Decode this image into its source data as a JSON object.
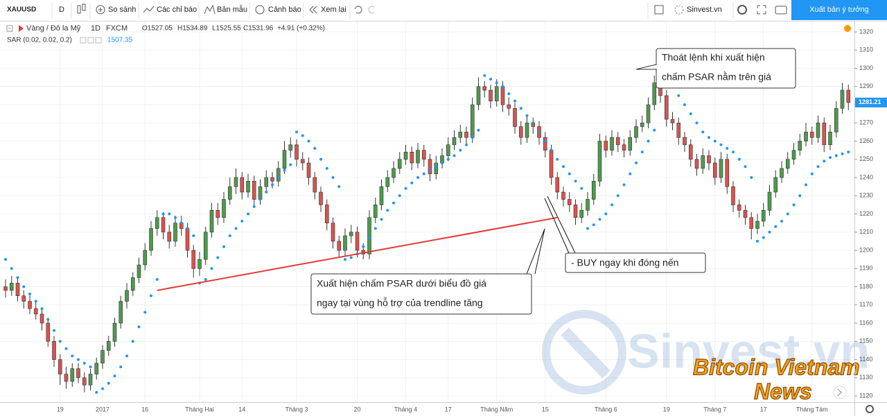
{
  "toolbar": {
    "symbol": "XAUUSD",
    "interval": "D",
    "items": [
      "So sánh",
      "Các chỉ báo",
      "Bản mẫu",
      "Cảnh báo",
      "Xem lại"
    ],
    "layout_name": "Sinvest.vn",
    "publish": "Xuất bản ý tưởng"
  },
  "legend": {
    "name": "Vàng / Đô la Mỹ",
    "interval": "1D",
    "source": "FXCM",
    "open": "O1527.05",
    "high": "H1534.89",
    "low": "L1525.55",
    "close": "C1531.96",
    "change": "+4.91 (+0.32%)",
    "indicator": "SAR (0.02, 0.02, 0.2)",
    "indicator_value": "1507.35"
  },
  "chart_data": {
    "type": "candlestick",
    "categories": [
      null,
      null,
      null,
      null,
      null,
      null,
      null,
      null,
      null,
      "19",
      null,
      null,
      null,
      null,
      null,
      null,
      "2017",
      null,
      null,
      null,
      null,
      null,
      null,
      "16",
      null,
      null,
      null,
      null,
      null,
      null,
      null,
      null,
      "Tháng Hai",
      null,
      null,
      null,
      null,
      null,
      null,
      "14",
      null,
      null,
      null,
      null,
      null,
      null,
      null,
      null,
      "Tháng 3",
      null,
      null,
      null,
      null,
      null,
      null,
      null,
      null,
      null,
      "20",
      null,
      null,
      null,
      null,
      null,
      null,
      null,
      "Tháng 4",
      null,
      null,
      null,
      null,
      null,
      null,
      "17",
      null,
      null,
      null,
      null,
      null,
      null,
      null,
      "Tháng Năm",
      null,
      null,
      null,
      null,
      null,
      null,
      null,
      "15",
      null,
      null,
      null,
      null,
      null,
      null,
      null,
      null,
      null,
      "Tháng 6",
      null,
      null,
      null,
      null,
      null,
      null,
      null,
      null,
      null,
      "19",
      null,
      null,
      null,
      null,
      null,
      null,
      null,
      "Tháng 7",
      null,
      null,
      null,
      null,
      null,
      null,
      null,
      "17",
      null,
      null,
      null,
      null,
      null,
      null,
      null,
      "Tháng Tám",
      null,
      null,
      null,
      null,
      null,
      null
    ],
    "candles": [
      [
        1180,
        1184,
        1174,
        1178
      ],
      [
        1178,
        1186,
        1175,
        1182
      ],
      [
        1182,
        1185,
        1172,
        1175
      ],
      [
        1175,
        1178,
        1168,
        1172
      ],
      [
        1172,
        1175,
        1165,
        1168
      ],
      [
        1168,
        1172,
        1162,
        1165
      ],
      [
        1165,
        1168,
        1156,
        1160
      ],
      [
        1160,
        1163,
        1147,
        1150
      ],
      [
        1150,
        1153,
        1136,
        1140
      ],
      [
        1140,
        1143,
        1126,
        1132
      ],
      [
        1132,
        1136,
        1124,
        1128
      ],
      [
        1128,
        1138,
        1125,
        1135
      ],
      [
        1135,
        1138,
        1127,
        1130
      ],
      [
        1130,
        1133,
        1122,
        1126
      ],
      [
        1126,
        1135,
        1123,
        1132
      ],
      [
        1132,
        1141,
        1129,
        1138
      ],
      [
        1138,
        1148,
        1135,
        1145
      ],
      [
        1145,
        1153,
        1142,
        1150
      ],
      [
        1150,
        1163,
        1147,
        1160
      ],
      [
        1160,
        1175,
        1157,
        1172
      ],
      [
        1172,
        1182,
        1168,
        1178
      ],
      [
        1178,
        1188,
        1175,
        1185
      ],
      [
        1185,
        1196,
        1182,
        1192
      ],
      [
        1192,
        1204,
        1189,
        1200
      ],
      [
        1200,
        1216,
        1197,
        1212
      ],
      [
        1212,
        1222,
        1208,
        1218
      ],
      [
        1218,
        1221,
        1206,
        1210
      ],
      [
        1210,
        1214,
        1201,
        1205
      ],
      [
        1205,
        1219,
        1202,
        1215
      ],
      [
        1215,
        1219,
        1208,
        1212
      ],
      [
        1212,
        1215,
        1196,
        1200
      ],
      [
        1200,
        1203,
        1185,
        1190
      ],
      [
        1190,
        1199,
        1186,
        1195
      ],
      [
        1195,
        1213,
        1192,
        1210
      ],
      [
        1210,
        1226,
        1207,
        1222
      ],
      [
        1222,
        1226,
        1214,
        1218
      ],
      [
        1218,
        1232,
        1215,
        1228
      ],
      [
        1228,
        1240,
        1225,
        1235
      ],
      [
        1235,
        1245,
        1231,
        1240
      ],
      [
        1240,
        1243,
        1228,
        1232
      ],
      [
        1232,
        1242,
        1229,
        1238
      ],
      [
        1238,
        1241,
        1224,
        1228
      ],
      [
        1228,
        1239,
        1225,
        1235
      ],
      [
        1235,
        1244,
        1232,
        1240
      ],
      [
        1240,
        1243,
        1234,
        1238
      ],
      [
        1238,
        1249,
        1235,
        1245
      ],
      [
        1245,
        1260,
        1242,
        1255
      ],
      [
        1255,
        1262,
        1251,
        1258
      ],
      [
        1258,
        1261,
        1246,
        1250
      ],
      [
        1250,
        1254,
        1244,
        1248
      ],
      [
        1248,
        1251,
        1236,
        1240
      ],
      [
        1240,
        1243,
        1228,
        1232
      ],
      [
        1232,
        1235,
        1221,
        1225
      ],
      [
        1225,
        1228,
        1211,
        1215
      ],
      [
        1215,
        1218,
        1201,
        1205
      ],
      [
        1205,
        1208,
        1196,
        1200
      ],
      [
        1200,
        1212,
        1197,
        1208
      ],
      [
        1208,
        1214,
        1204,
        1210
      ],
      [
        1210,
        1213,
        1196,
        1200
      ],
      [
        1200,
        1204,
        1195,
        1198
      ],
      [
        1198,
        1222,
        1195,
        1218
      ],
      [
        1218,
        1229,
        1215,
        1225
      ],
      [
        1225,
        1239,
        1222,
        1235
      ],
      [
        1235,
        1244,
        1232,
        1240
      ],
      [
        1240,
        1249,
        1237,
        1245
      ],
      [
        1245,
        1254,
        1242,
        1250
      ],
      [
        1250,
        1258,
        1247,
        1254
      ],
      [
        1254,
        1257,
        1244,
        1248
      ],
      [
        1248,
        1259,
        1245,
        1255
      ],
      [
        1255,
        1258,
        1246,
        1250
      ],
      [
        1250,
        1253,
        1238,
        1242
      ],
      [
        1242,
        1252,
        1239,
        1248
      ],
      [
        1248,
        1256,
        1245,
        1252
      ],
      [
        1252,
        1262,
        1249,
        1258
      ],
      [
        1258,
        1266,
        1255,
        1262
      ],
      [
        1262,
        1269,
        1259,
        1265
      ],
      [
        1265,
        1268,
        1258,
        1262
      ],
      [
        1262,
        1284,
        1259,
        1280
      ],
      [
        1280,
        1295,
        1277,
        1290
      ],
      [
        1290,
        1293,
        1284,
        1288
      ],
      [
        1288,
        1291,
        1278,
        1282
      ],
      [
        1282,
        1294,
        1279,
        1290
      ],
      [
        1290,
        1293,
        1276,
        1280
      ],
      [
        1280,
        1284,
        1274,
        1278
      ],
      [
        1278,
        1281,
        1264,
        1268
      ],
      [
        1268,
        1271,
        1258,
        1262
      ],
      [
        1262,
        1274,
        1259,
        1270
      ],
      [
        1270,
        1273,
        1264,
        1268
      ],
      [
        1268,
        1271,
        1258,
        1262
      ],
      [
        1262,
        1265,
        1251,
        1255
      ],
      [
        1255,
        1258,
        1236,
        1240
      ],
      [
        1240,
        1243,
        1228,
        1232
      ],
      [
        1232,
        1235,
        1224,
        1228
      ],
      [
        1228,
        1232,
        1221,
        1225
      ],
      [
        1225,
        1228,
        1214,
        1218
      ],
      [
        1218,
        1226,
        1215,
        1222
      ],
      [
        1222,
        1232,
        1219,
        1228
      ],
      [
        1228,
        1242,
        1225,
        1238
      ],
      [
        1238,
        1264,
        1235,
        1260
      ],
      [
        1260,
        1263,
        1251,
        1255
      ],
      [
        1255,
        1266,
        1252,
        1262
      ],
      [
        1262,
        1265,
        1254,
        1258
      ],
      [
        1258,
        1261,
        1251,
        1255
      ],
      [
        1255,
        1266,
        1252,
        1262
      ],
      [
        1262,
        1272,
        1259,
        1268
      ],
      [
        1268,
        1274,
        1265,
        1270
      ],
      [
        1270,
        1284,
        1267,
        1280
      ],
      [
        1280,
        1296,
        1277,
        1292
      ],
      [
        1292,
        1295,
        1281,
        1285
      ],
      [
        1285,
        1288,
        1268,
        1272
      ],
      [
        1272,
        1276,
        1266,
        1270
      ],
      [
        1270,
        1273,
        1258,
        1262
      ],
      [
        1262,
        1265,
        1254,
        1258
      ],
      [
        1258,
        1261,
        1246,
        1250
      ],
      [
        1250,
        1253,
        1241,
        1245
      ],
      [
        1245,
        1256,
        1242,
        1252
      ],
      [
        1252,
        1255,
        1244,
        1248
      ],
      [
        1248,
        1251,
        1236,
        1240
      ],
      [
        1240,
        1254,
        1237,
        1250
      ],
      [
        1250,
        1253,
        1231,
        1235
      ],
      [
        1235,
        1238,
        1221,
        1225
      ],
      [
        1225,
        1228,
        1218,
        1222
      ],
      [
        1222,
        1225,
        1214,
        1218
      ],
      [
        1218,
        1221,
        1206,
        1212
      ],
      [
        1212,
        1220,
        1209,
        1216
      ],
      [
        1216,
        1226,
        1213,
        1222
      ],
      [
        1222,
        1236,
        1219,
        1232
      ],
      [
        1232,
        1244,
        1229,
        1240
      ],
      [
        1240,
        1249,
        1237,
        1245
      ],
      [
        1245,
        1254,
        1242,
        1250
      ],
      [
        1250,
        1259,
        1247,
        1255
      ],
      [
        1255,
        1264,
        1252,
        1260
      ],
      [
        1260,
        1270,
        1257,
        1265
      ],
      [
        1265,
        1268,
        1258,
        1262
      ],
      [
        1262,
        1274,
        1259,
        1270
      ],
      [
        1270,
        1273,
        1254,
        1258
      ],
      [
        1258,
        1269,
        1255,
        1265
      ],
      [
        1265,
        1282,
        1262,
        1278
      ],
      [
        1278,
        1292,
        1275,
        1288
      ],
      [
        1288,
        1291,
        1277,
        1281.21
      ]
    ],
    "psar": [
      1195,
      1190,
      1185,
      1180,
      1176,
      1172,
      1168,
      1162,
      1156,
      1150,
      1146,
      1142,
      1140,
      1138,
      1136,
      1122,
      1124,
      1127,
      1131,
      1136,
      1142,
      1150,
      1158,
      1166,
      1175,
      1184,
      1220,
      1220,
      1218,
      1215,
      1212,
      1208,
      1182,
      1184,
      1190,
      1196,
      1202,
      1208,
      1212,
      1216,
      1220,
      1224,
      1228,
      1232,
      1236,
      1240,
      1244,
      1247,
      1265,
      1263,
      1260,
      1256,
      1250,
      1245,
      1240,
      1235,
      1195,
      1196,
      1198,
      1202,
      1207,
      1212,
      1217,
      1222,
      1226,
      1230,
      1234,
      1237,
      1240,
      1242,
      1244,
      1246,
      1248,
      1250,
      1252,
      1255,
      1258,
      1262,
      1266,
      1296,
      1294,
      1292,
      1290,
      1286,
      1282,
      1278,
      1274,
      1270,
      1265,
      1260,
      1255,
      1250,
      1246,
      1242,
      1238,
      1234,
      1212,
      1214,
      1217,
      1220,
      1225,
      1230,
      1236,
      1242,
      1248,
      1254,
      1260,
      1266,
      1297,
      1294,
      1290,
      1285,
      1280,
      1275,
      1270,
      1265,
      1262,
      1260,
      1258,
      1256,
      1254,
      1250,
      1246,
      1240,
      1205,
      1207,
      1210,
      1213,
      1216,
      1220,
      1225,
      1230,
      1236,
      1242,
      1246,
      1249,
      1251,
      1252,
      1253,
      1254
    ],
    "up_color": "#4e9a4e",
    "down_color": "#d9534f",
    "psar_color": "#2196f3",
    "last_price_color": "#2196f3",
    "trendline": {
      "x": [
        25,
        91
      ],
      "y": [
        1178,
        1218
      ],
      "color": "#e53935"
    },
    "ylim": [
      1116.6,
      1324.2
    ],
    "yticks": [
      1120,
      1130,
      1140,
      1150,
      1160,
      1170,
      1180,
      1190,
      1200,
      1210,
      1220,
      1230,
      1240,
      1250,
      1260,
      1270,
      1280,
      1290,
      1300,
      1310,
      1320
    ],
    "grid": true
  },
  "annotations": [
    {
      "lines": [
        "Thoát lệnh khi xuất hiện",
        "chấm PSAR nằm trên giá"
      ]
    },
    {
      "lines": [
        "- BUY ngay khi đóng nến"
      ]
    },
    {
      "lines": [
        "Xuất hiện chấm PSAR dưới biểu đồ giá",
        "ngay tại vùng hỗ trợ của trendline tăng"
      ]
    }
  ],
  "watermarks": [
    "Sinvest.vn",
    "Bitcoin Vietnam",
    "News"
  ]
}
